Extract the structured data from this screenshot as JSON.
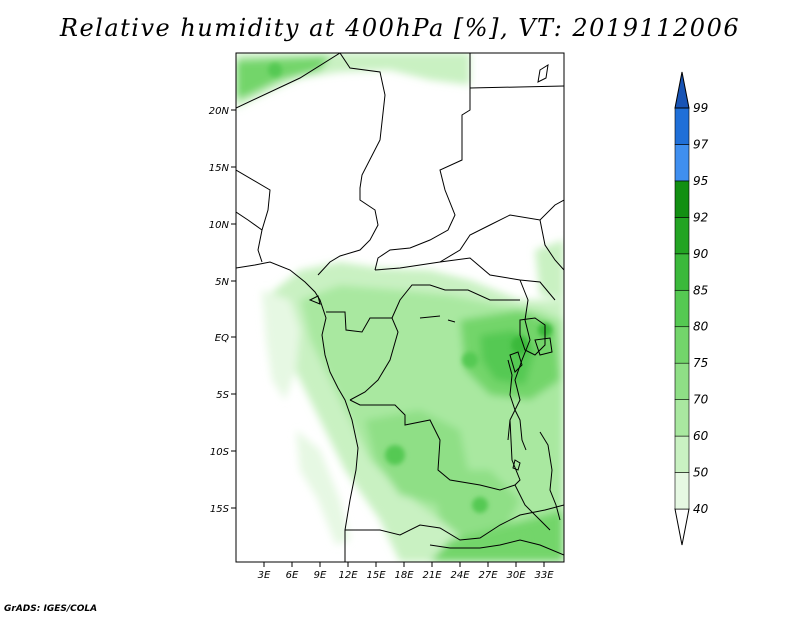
{
  "title": "Relative humidity at 400hPa [%], VT: 2019112006",
  "map": {
    "lat_ticks": [
      "20N",
      "15N",
      "10N",
      "5N",
      "EQ",
      "5S",
      "10S",
      "15S"
    ],
    "lon_ticks": [
      "3E",
      "6E",
      "9E",
      "12E",
      "15E",
      "18E",
      "21E",
      "24E",
      "27E",
      "30E",
      "33E"
    ]
  },
  "colorbar": {
    "levels": [
      "40",
      "50",
      "60",
      "70",
      "75",
      "80",
      "85",
      "90",
      "92",
      "95",
      "97",
      "99"
    ],
    "colors": [
      "#ffffff",
      "#e6f8e3",
      "#c9f1c2",
      "#a9e8a0",
      "#8fdf86",
      "#73d56b",
      "#55c952",
      "#3bb93b",
      "#23a423",
      "#128f12",
      "#3f8ff0",
      "#1f6fd8",
      "#1854b5"
    ]
  },
  "credit": "GrADS: IGES/COLA"
}
